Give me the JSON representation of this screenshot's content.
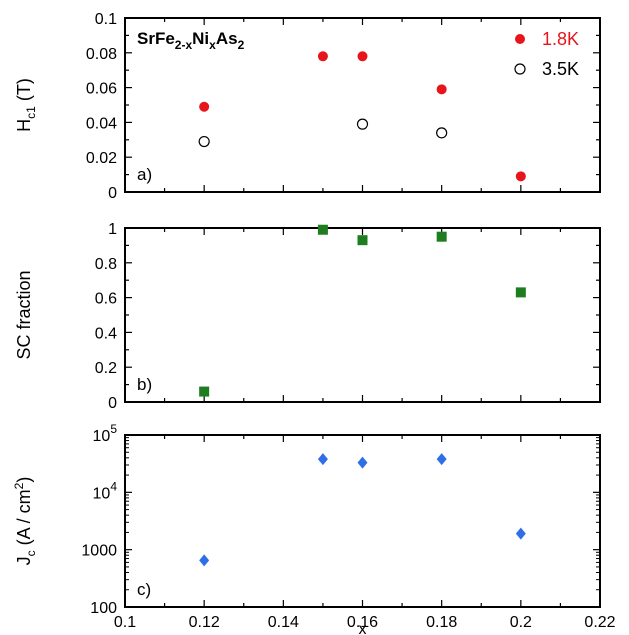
{
  "chart_data": [
    {
      "type": "scatter",
      "panel_label": "a)",
      "title": {
        "base": "SrFe",
        "sub1": "2-x",
        "mid1": "Ni",
        "sub2": "x",
        "mid2": "As",
        "sub3": "2"
      },
      "ylabel": {
        "main": "H",
        "sub": "c1",
        "unit": " (T)"
      },
      "xlim": [
        0.1,
        0.22
      ],
      "ylim": [
        0,
        0.1
      ],
      "yticks": [
        "0",
        "0.02",
        "0.04",
        "0.06",
        "0.08",
        "0.1"
      ],
      "legend_position": "top-right",
      "series": [
        {
          "name": "1.8K",
          "color": "#e8141c",
          "marker": "filled-circle",
          "x": [
            0.12,
            0.15,
            0.16,
            0.18,
            0.2
          ],
          "y": [
            0.049,
            0.078,
            0.078,
            0.059,
            0.009
          ]
        },
        {
          "name": "3.5K",
          "color": "#000000",
          "marker": "open-circle",
          "x": [
            0.12,
            0.16,
            0.18
          ],
          "y": [
            0.029,
            0.039,
            0.034
          ]
        }
      ]
    },
    {
      "type": "scatter",
      "panel_label": "b)",
      "ylabel": "SC fraction",
      "xlim": [
        0.1,
        0.22
      ],
      "ylim": [
        0,
        1
      ],
      "yticks": [
        "0",
        "0.2",
        "0.4",
        "0.6",
        "0.8",
        "1"
      ],
      "series": [
        {
          "color": "#1e7d1e",
          "marker": "square",
          "x": [
            0.12,
            0.15,
            0.16,
            0.18,
            0.2
          ],
          "y": [
            0.06,
            0.99,
            0.93,
            0.95,
            0.63
          ]
        }
      ]
    },
    {
      "type": "scatter",
      "panel_label": "c)",
      "ylabel": {
        "main": "J",
        "sub": "c",
        "unit": " (A / cm",
        "sup": "2",
        "close": ")"
      },
      "xlim": [
        0.1,
        0.22
      ],
      "ylim": [
        100,
        100000
      ],
      "yscale": "log",
      "yticks": [
        {
          "base": "100",
          "exp": ""
        },
        {
          "base": "1000",
          "exp": ""
        },
        {
          "base": "10",
          "exp": "4"
        },
        {
          "base": "10",
          "exp": "5"
        }
      ],
      "xlabel": "x",
      "xticks": [
        "0.1",
        "0.12",
        "0.14",
        "0.16",
        "0.18",
        "0.2",
        "0.22"
      ],
      "series": [
        {
          "color": "#2f6fe6",
          "marker": "diamond",
          "x": [
            0.12,
            0.15,
            0.16,
            0.18,
            0.2
          ],
          "y": [
            650,
            38000,
            33000,
            38000,
            1900
          ]
        }
      ]
    }
  ]
}
